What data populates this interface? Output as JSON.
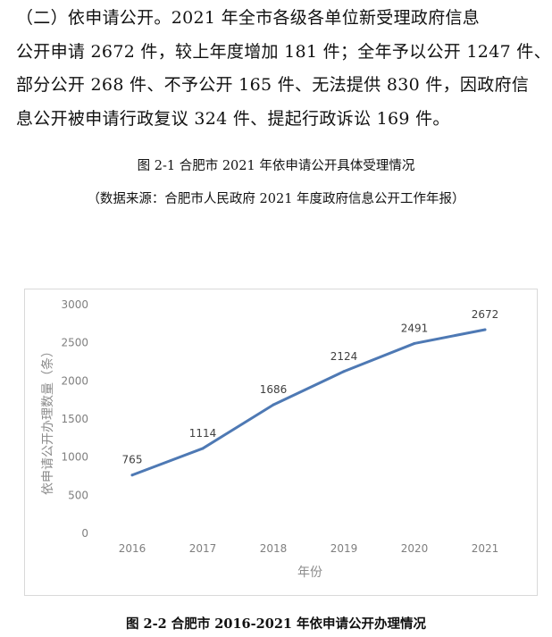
{
  "paragraph": {
    "lines": [
      "（二）依申请公开。2021 年全市各级各单位新受理政府信息",
      "公开申请 2672 件，较上年度增加 181 件；全年予以公开 1247 件、",
      "部分公开 268 件、不予公开 165 件、无法提供 830 件，因政府信",
      "息公开被申请行政复议 324 件、提起行政诉讼 169 件。"
    ]
  },
  "captions": {
    "figure1_title": "图 2-1  合肥市 2021 年依申请公开具体受理情况",
    "figure1_source": "（数据来源：合肥市人民政府 2021 年度政府信息公开工作年报）",
    "figure2_title": "图 2-2  合肥市 2016-2021 年依申请公开办理情况"
  },
  "chart_data": {
    "type": "line",
    "x": [
      "2016",
      "2017",
      "2018",
      "2019",
      "2020",
      "2021"
    ],
    "series": [
      {
        "values": [
          765,
          1114,
          1686,
          2124,
          2491,
          2672
        ],
        "color": "#4e79b4"
      }
    ],
    "data_labels": [
      "765",
      "1114",
      "1686",
      "2124",
      "2491",
      "2672"
    ],
    "xlabel": "年份",
    "ylabel": "依申请公开办理数量（条）",
    "ylim": [
      0,
      3000
    ],
    "yticks": [
      "0",
      "500",
      "1000",
      "1500",
      "2000",
      "2500",
      "3000"
    ],
    "grid": false,
    "legend": "none"
  }
}
